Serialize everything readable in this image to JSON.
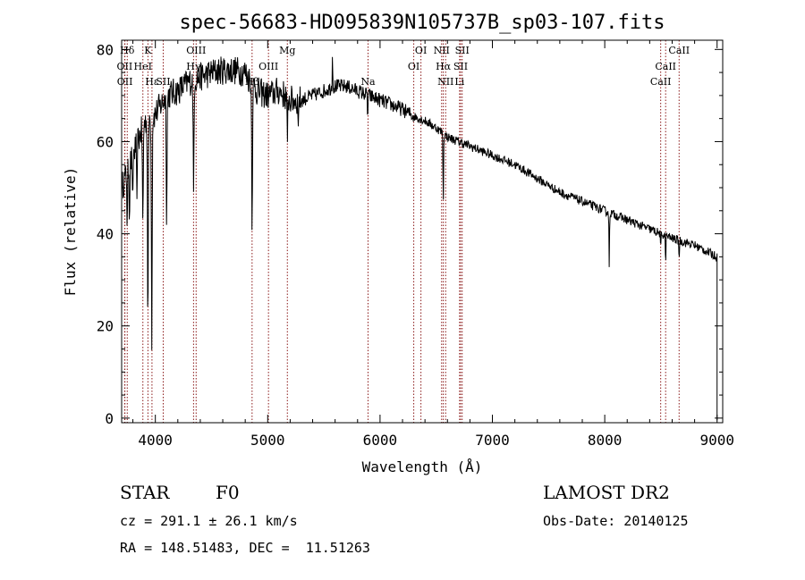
{
  "chart_data": {
    "type": "line",
    "title": "spec-56683-HD095839N105737B_sp03-107.fits",
    "xlabel": "Wavelength (Å)",
    "ylabel": "Flux (relative)",
    "xlim": [
      3700,
      9050
    ],
    "ylim": [
      -1,
      82
    ],
    "xticks": [
      4000,
      5000,
      6000,
      7000,
      8000,
      9000
    ],
    "xtick_labels": [
      "4000",
      "5000",
      "6000",
      "7000",
      "8000",
      "9000"
    ],
    "yticks": [
      0,
      20,
      40,
      60,
      80
    ],
    "ytick_labels": [
      "0",
      "20",
      "40",
      "60",
      "80"
    ],
    "line_color": "#000000",
    "marker_color": "#8b1a1a",
    "spectral_lines": [
      {
        "name": "Hδ",
        "wavelength": 3750,
        "row": 0
      },
      {
        "name": "K",
        "wavelength": 3934,
        "row": 0
      },
      {
        "name": "OII",
        "wavelength": 3727,
        "row": 1
      },
      {
        "name": "HeI",
        "wavelength": 3889,
        "row": 1
      },
      {
        "name": "OII",
        "wavelength": 3729,
        "row": 2
      },
      {
        "name": "Hε",
        "wavelength": 3970,
        "row": 2
      },
      {
        "name": "SII",
        "wavelength": 4070,
        "row": 2
      },
      {
        "name": "OIII",
        "wavelength": 4363,
        "row": 0
      },
      {
        "name": "Hγ",
        "wavelength": 4340,
        "row": 1
      },
      {
        "name": "Hβ",
        "wavelength": 4861,
        "row": 2
      },
      {
        "name": "OIII",
        "wavelength": 5007,
        "row": 1
      },
      {
        "name": "Mg",
        "wavelength": 5175,
        "row": 0
      },
      {
        "name": "Na",
        "wavelength": 5893,
        "row": 2
      },
      {
        "name": "OI",
        "wavelength": 6364,
        "row": 0
      },
      {
        "name": "OI",
        "wavelength": 6300,
        "row": 1
      },
      {
        "name": "NII",
        "wavelength": 6548,
        "row": 0
      },
      {
        "name": "SII",
        "wavelength": 6731,
        "row": 0
      },
      {
        "name": "Hα",
        "wavelength": 6563,
        "row": 1
      },
      {
        "name": "SII",
        "wavelength": 6717,
        "row": 1
      },
      {
        "name": "NII",
        "wavelength": 6584,
        "row": 2
      },
      {
        "name": "Li",
        "wavelength": 6708,
        "row": 2
      },
      {
        "name": "CaII",
        "wavelength": 8662,
        "row": 0
      },
      {
        "name": "CaII",
        "wavelength": 8542,
        "row": 1
      },
      {
        "name": "CaII",
        "wavelength": 8498,
        "row": 2
      }
    ],
    "continuum": [
      [
        3700,
        50
      ],
      [
        3800,
        57
      ],
      [
        3900,
        64
      ],
      [
        4000,
        66
      ],
      [
        4100,
        70
      ],
      [
        4200,
        71
      ],
      [
        4300,
        73
      ],
      [
        4400,
        74
      ],
      [
        4500,
        75
      ],
      [
        4600,
        75.5
      ],
      [
        4700,
        75.5
      ],
      [
        4800,
        75
      ],
      [
        4900,
        71
      ],
      [
        5000,
        70
      ],
      [
        5100,
        71
      ],
      [
        5200,
        69
      ],
      [
        5300,
        69
      ],
      [
        5400,
        70
      ],
      [
        5500,
        71
      ],
      [
        5600,
        72
      ],
      [
        5700,
        72
      ],
      [
        5800,
        71
      ],
      [
        5900,
        70
      ],
      [
        6000,
        69
      ],
      [
        6100,
        68
      ],
      [
        6200,
        67
      ],
      [
        6300,
        65.5
      ],
      [
        6400,
        64.5
      ],
      [
        6500,
        63
      ],
      [
        6600,
        61
      ],
      [
        6700,
        60
      ],
      [
        6800,
        59
      ],
      [
        7000,
        57
      ],
      [
        7200,
        55
      ],
      [
        7400,
        52
      ],
      [
        7600,
        49
      ],
      [
        7800,
        47
      ],
      [
        8000,
        45
      ],
      [
        8200,
        43
      ],
      [
        8400,
        41
      ],
      [
        8600,
        39
      ],
      [
        8800,
        37.5
      ],
      [
        9000,
        35
      ]
    ],
    "absorption": [
      {
        "wavelength": 3750,
        "depth": 14
      },
      {
        "wavelength": 3770,
        "depth": 12
      },
      {
        "wavelength": 3798,
        "depth": 14
      },
      {
        "wavelength": 3835,
        "depth": 16
      },
      {
        "wavelength": 3889,
        "depth": 22
      },
      {
        "wavelength": 3934,
        "depth": 45
      },
      {
        "wavelength": 3968,
        "depth": 48
      },
      {
        "wavelength": 4101,
        "depth": 26
      },
      {
        "wavelength": 4340,
        "depth": 25
      },
      {
        "wavelength": 4861,
        "depth": 30
      },
      {
        "wavelength": 5175,
        "depth": 13
      },
      {
        "wavelength": 5270,
        "depth": 6
      },
      {
        "wavelength": 5890,
        "depth": 5
      },
      {
        "wavelength": 6563,
        "depth": 16
      },
      {
        "wavelength": 8040,
        "depth": 12
      },
      {
        "wavelength": 8498,
        "depth": 4
      },
      {
        "wavelength": 8542,
        "depth": 6
      },
      {
        "wavelength": 8662,
        "depth": 4
      }
    ],
    "emission": [
      {
        "wavelength": 5577,
        "height": 9
      }
    ]
  },
  "info": {
    "object_class": "STAR",
    "subclass": "F0",
    "survey": "LAMOST DR2",
    "redshift": "cz = 291.1 ± 26.1 km/s",
    "obs_date": "Obs-Date: 20140125",
    "coords": "RA = 148.51483, DEC =  11.51263"
  }
}
